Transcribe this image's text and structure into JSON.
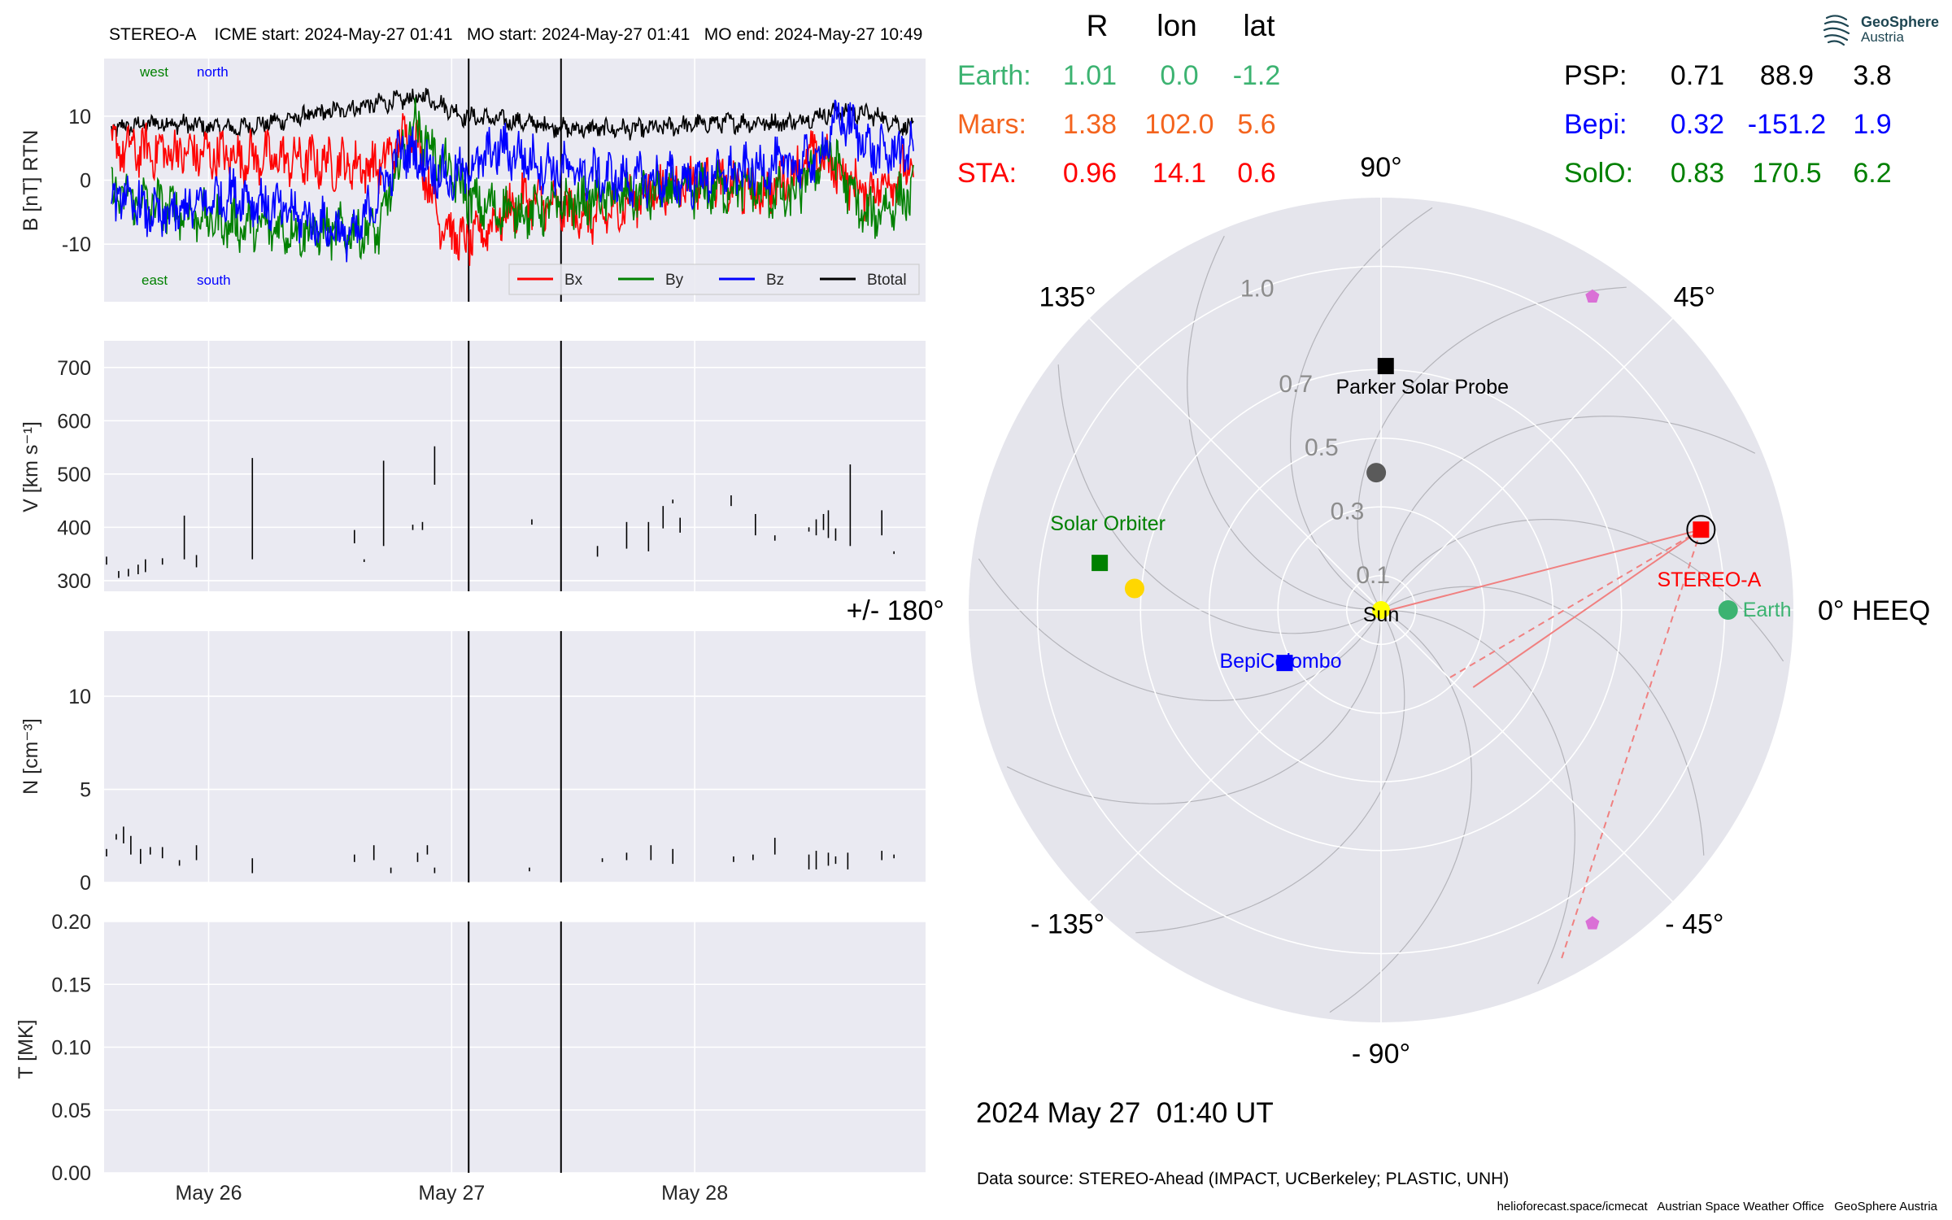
{
  "chart_data": [
    {
      "type": "line",
      "panel": "magnetic-field",
      "title": "STEREO-A    ICME start: 2024-May-27 01:41   MO start: 2024-May-27 01:41   MO end: 2024-May-27 10:49",
      "ylabel": "B [nT] RTN",
      "ylim": [
        -19,
        19
      ],
      "yticks": [
        -10,
        0,
        10
      ],
      "grid": true,
      "legend_placement": "bottom-right",
      "corner_labels": {
        "west": "west",
        "north": "north",
        "east": "east",
        "south": "south"
      },
      "series": [
        {
          "name": "Bx",
          "color": "#ff0000",
          "x": [
            25.6,
            26.0,
            26.4,
            26.7,
            26.84,
            26.95,
            27.05,
            27.3,
            27.6,
            27.8,
            28.0,
            28.3,
            28.5,
            28.7,
            28.9
          ],
          "y": [
            5,
            4,
            3,
            2,
            8,
            -6,
            -10,
            -3,
            -6,
            -2,
            0,
            -2,
            4,
            -2,
            2
          ]
        },
        {
          "name": "By",
          "color": "#008000",
          "x": [
            25.6,
            25.8,
            26.1,
            26.4,
            26.7,
            26.84,
            26.95,
            27.1,
            27.3,
            27.6,
            27.9,
            28.2,
            28.4,
            28.55,
            28.7,
            28.9
          ],
          "y": [
            -2,
            -4,
            -7,
            -8,
            -8,
            9,
            3,
            -4,
            -5,
            -3,
            -2,
            -1,
            -3,
            5,
            -6,
            -2
          ]
        },
        {
          "name": "Bz",
          "color": "#0000ff",
          "x": [
            25.6,
            25.8,
            26.1,
            26.4,
            26.6,
            26.8,
            27.0,
            27.2,
            27.4,
            27.7,
            28.0,
            28.3,
            28.5,
            28.6,
            28.75,
            28.9
          ],
          "y": [
            -2,
            -6,
            -2,
            -6,
            -9,
            5,
            0,
            5,
            2,
            0,
            0,
            2,
            3,
            10,
            4,
            5
          ]
        },
        {
          "name": "Btotal",
          "color": "#000000",
          "x": [
            25.6,
            25.8,
            26.1,
            26.4,
            26.7,
            26.9,
            27.05,
            27.3,
            27.5,
            27.8,
            28.1,
            28.4,
            28.6,
            28.75,
            28.9
          ],
          "y": [
            8,
            9,
            8,
            10,
            12,
            13,
            10,
            9,
            8,
            8,
            9,
            9,
            11,
            10,
            8
          ]
        }
      ]
    },
    {
      "type": "scatter",
      "panel": "speed",
      "ylabel": "V [km s⁻¹]",
      "ylim": [
        280,
        750
      ],
      "yticks": [
        300,
        400,
        500,
        600,
        700
      ],
      "grid": true,
      "segments": [
        [
          25.58,
          330,
          345
        ],
        [
          25.63,
          305,
          318
        ],
        [
          25.67,
          308,
          322
        ],
        [
          25.71,
          312,
          330
        ],
        [
          25.74,
          316,
          340
        ],
        [
          25.81,
          330,
          342
        ],
        [
          25.9,
          340,
          422
        ],
        [
          25.95,
          325,
          348
        ],
        [
          26.18,
          340,
          530
        ],
        [
          26.6,
          370,
          395
        ],
        [
          26.64,
          335,
          340
        ],
        [
          26.72,
          365,
          525
        ],
        [
          26.84,
          395,
          405
        ],
        [
          26.88,
          395,
          410
        ],
        [
          26.93,
          480,
          552
        ],
        [
          27.33,
          405,
          415
        ],
        [
          27.6,
          345,
          365
        ],
        [
          27.72,
          360,
          410
        ],
        [
          27.81,
          355,
          410
        ],
        [
          27.87,
          398,
          440
        ],
        [
          27.91,
          445,
          452
        ],
        [
          27.94,
          390,
          418
        ],
        [
          28.15,
          440,
          460
        ],
        [
          28.25,
          385,
          425
        ],
        [
          28.33,
          375,
          385
        ],
        [
          28.47,
          392,
          400
        ],
        [
          28.5,
          385,
          415
        ],
        [
          28.53,
          395,
          425
        ],
        [
          28.55,
          380,
          432
        ],
        [
          28.58,
          375,
          398
        ],
        [
          28.64,
          365,
          518
        ],
        [
          28.77,
          385,
          432
        ],
        [
          28.82,
          350,
          355
        ]
      ]
    },
    {
      "type": "scatter",
      "panel": "density",
      "ylabel": "N [cm⁻³]",
      "ylim": [
        0,
        13.5
      ],
      "yticks": [
        0,
        5,
        10
      ],
      "grid": true,
      "segments": [
        [
          25.58,
          1.4,
          1.8
        ],
        [
          25.62,
          2.3,
          2.6
        ],
        [
          25.65,
          2.1,
          3.0
        ],
        [
          25.68,
          1.5,
          2.5
        ],
        [
          25.72,
          1.0,
          1.8
        ],
        [
          25.76,
          1.5,
          1.9
        ],
        [
          25.81,
          1.3,
          1.9
        ],
        [
          25.88,
          0.9,
          1.2
        ],
        [
          25.95,
          1.2,
          2.0
        ],
        [
          26.18,
          0.5,
          1.3
        ],
        [
          26.6,
          1.1,
          1.5
        ],
        [
          26.68,
          1.2,
          2.0
        ],
        [
          26.75,
          0.5,
          0.8
        ],
        [
          26.86,
          1.1,
          1.6
        ],
        [
          26.9,
          1.5,
          2.0
        ],
        [
          26.93,
          0.5,
          0.8
        ],
        [
          27.32,
          0.6,
          0.8
        ],
        [
          27.62,
          1.1,
          1.3
        ],
        [
          27.72,
          1.2,
          1.6
        ],
        [
          27.82,
          1.2,
          2.0
        ],
        [
          27.91,
          1.0,
          1.8
        ],
        [
          28.16,
          1.1,
          1.4
        ],
        [
          28.24,
          1.2,
          1.5
        ],
        [
          28.33,
          1.5,
          2.4
        ],
        [
          28.47,
          0.7,
          1.5
        ],
        [
          28.5,
          0.7,
          1.7
        ],
        [
          28.55,
          0.9,
          1.6
        ],
        [
          28.58,
          1.0,
          1.4
        ],
        [
          28.63,
          0.7,
          1.6
        ],
        [
          28.77,
          1.2,
          1.7
        ],
        [
          28.82,
          1.3,
          1.5
        ]
      ]
    },
    {
      "type": "line",
      "panel": "temperature",
      "ylabel": "T [MK]",
      "ylim": [
        0,
        0.2
      ],
      "yticks": [
        "0.00",
        "0.05",
        "0.10",
        "0.15",
        "0.20"
      ],
      "grid": true,
      "xlim": [
        25.57,
        28.95
      ],
      "xticks": [
        {
          "x": 26.0,
          "label": "May 26"
        },
        {
          "x": 27.0,
          "label": "May 27"
        },
        {
          "x": 28.0,
          "label": "May 28"
        }
      ],
      "series": []
    },
    {
      "type": "scatter",
      "panel": "polar-positions",
      "subtype": "polar",
      "rlim": [
        0,
        1.2
      ],
      "radial_ticks": [
        "0.1",
        "0.3",
        "0.5",
        "0.7",
        "1.0"
      ],
      "radial_tick_values": [
        0.1,
        0.3,
        0.5,
        0.7,
        1.0
      ],
      "angle_labels": [
        {
          "deg": 0,
          "label": "0° HEEQ"
        },
        {
          "deg": 45,
          "label": "45°"
        },
        {
          "deg": 90,
          "label": "90°"
        },
        {
          "deg": 135,
          "label": "135°"
        },
        {
          "deg": 180,
          "label": "+/- 180°"
        },
        {
          "deg": -135,
          "label": "- 135°"
        },
        {
          "deg": -90,
          "label": "- 90°"
        },
        {
          "deg": -45,
          "label": "- 45°"
        }
      ],
      "objects": [
        {
          "name": "Sun",
          "r": 0.0,
          "lon": 0,
          "color": "#ffff00",
          "marker": "circle"
        },
        {
          "name": "Earth",
          "r": 1.01,
          "lon": 0.0,
          "color": "#3cb371",
          "marker": "circle"
        },
        {
          "name": "STEREO-A",
          "r": 0.96,
          "lon": 14.1,
          "color": "#ff0000",
          "marker": "square"
        },
        {
          "name": "Parker Solar Probe",
          "r": 0.71,
          "lon": 88.9,
          "color": "#000000",
          "marker": "square"
        },
        {
          "name": "BepiColombo",
          "r": 0.32,
          "lon": -151.2,
          "color": "#0000ff",
          "marker": "square"
        },
        {
          "name": "Solar Orbiter",
          "r": 0.83,
          "lon": 170.5,
          "color": "#008000",
          "marker": "square"
        },
        {
          "name": "",
          "r": 1.38,
          "lon": 102.0,
          "color": "#f4641e",
          "marker": "circle",
          "note": "Mars (outside plot range)"
        },
        {
          "name": "",
          "r": 0.72,
          "lon": 175.0,
          "color": "#ffd700",
          "marker": "circle"
        },
        {
          "name": "",
          "r": 0.4,
          "lon": 92.0,
          "color": "#5a5a5a",
          "marker": "circle"
        },
        {
          "name": "",
          "r": 1.1,
          "lon": 56.0,
          "color": "#da70d6",
          "marker": "pentagon"
        },
        {
          "name": "",
          "r": 1.1,
          "lon": -56.0,
          "color": "#da70d6",
          "marker": "pentagon"
        }
      ],
      "table_header": {
        "r": "R",
        "lon": "lon",
        "lat": "lat"
      },
      "table": [
        {
          "name": "Earth:",
          "r": "1.01",
          "lon": "0.0",
          "lat": "-1.2",
          "color": "#3cb371"
        },
        {
          "name": "Mars:",
          "r": "1.38",
          "lon": "102.0",
          "lat": "5.6",
          "color": "#f4641e"
        },
        {
          "name": "STA:",
          "r": "0.96",
          "lon": "14.1",
          "lat": "0.6",
          "color": "#ff0000"
        },
        {
          "name": "PSP:",
          "r": "0.71",
          "lon": "88.9",
          "lat": "3.8",
          "color": "#000000"
        },
        {
          "name": "Bepi:",
          "r": "0.32",
          "lon": "-151.2",
          "lat": "1.9",
          "color": "#0000ff"
        },
        {
          "name": "SolO:",
          "r": "0.83",
          "lon": "170.5",
          "lat": "6.2",
          "color": "#008000"
        }
      ]
    }
  ],
  "date_label": "2024 May 27  01:40 UT",
  "data_source": "Data source: STEREO-Ahead (IMPACT, UCBerkeley; PLASTIC, UNH)",
  "footer": "helioforecast.space/icmecat   Austrian Space Weather Office   GeoSphere Austria",
  "logo": {
    "name": "GeoSphere",
    "sub": "Austria"
  },
  "markers": {
    "icme_start": 27.07,
    "mo_end": 27.45
  },
  "colors": {
    "panel_bg": "#eaeaf2",
    "polar_bg": "#e5e5ec",
    "sun": "#ffff00",
    "geosphere_blue": "#1e4652"
  }
}
